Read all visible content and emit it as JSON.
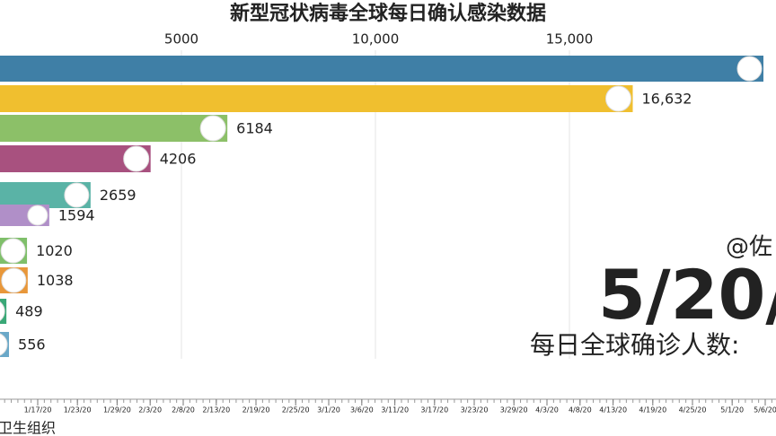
{
  "chart_data": {
    "type": "bar",
    "orientation": "horizontal",
    "title": "新型冠状病毒全球每日确认感染数据",
    "categories": [
      null,
      null,
      null,
      null,
      null,
      null,
      null,
      null,
      null,
      null
    ],
    "values": [
      20000,
      16632,
      6184,
      4206,
      2659,
      1594,
      1020,
      1038,
      489,
      556
    ],
    "value_labels": [
      null,
      "16,632",
      "6184",
      "4206",
      "2659",
      "1594",
      "1020",
      "1038",
      "489",
      "556"
    ],
    "colors": [
      "#3f7fa6",
      "#f0bf2f",
      "#8cc068",
      "#a8517f",
      "#5ab3a6",
      "#b08fc8",
      "#7fbf6a",
      "#e8973a",
      "#3aa877",
      "#6aa8c8"
    ],
    "xlim": [
      0,
      20000
    ],
    "xticks": [
      5000,
      {
        "value": 10000,
        "label": "10,000"
      },
      {
        "value": 15000,
        "label": "15,000"
      }
    ],
    "grid": true,
    "watermark": "@佐",
    "date": "5/20/",
    "subtitle": "每日全球确诊人数:",
    "source": "卫生组织",
    "timeline": [
      "1/17/20",
      "1/23/20",
      "1/29/20",
      "2/3/20",
      "2/8/20",
      "2/13/20",
      "2/19/20",
      "2/25/20",
      "3/1/20",
      "3/6/20",
      "3/11/20",
      "3/17/20",
      "3/23/20",
      "3/29/20",
      "4/3/20",
      "4/8/20",
      "4/13/20",
      "4/19/20",
      "4/25/20",
      "5/1/20",
      "5/6/20"
    ]
  }
}
